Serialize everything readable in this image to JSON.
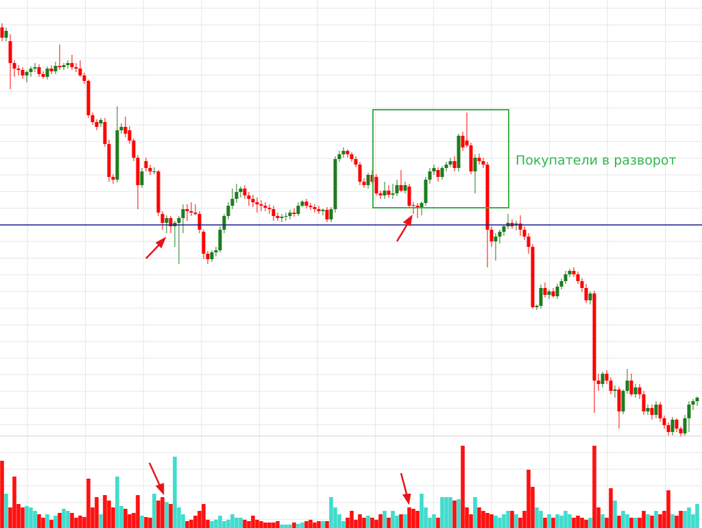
{
  "chart_data": {
    "type": "candlestick",
    "annotation": "Покупатели в разворот",
    "up_color": "#1e7b1e",
    "down_color": "#ff0000",
    "volume_up_color": "#40dccc",
    "volume_down_color": "#ff1010",
    "level": 312,
    "level_color": "#1a1a8c",
    "grid": true,
    "ylim": [
      0,
      640
    ],
    "vlim": [
      0,
      130
    ],
    "candles": [
      [
        600,
        606,
        580,
        585
      ],
      [
        585,
        600,
        580,
        595
      ],
      [
        580,
        590,
        510,
        548
      ],
      [
        548,
        552,
        528,
        540
      ],
      [
        540,
        545,
        530,
        538
      ],
      [
        538,
        542,
        525,
        530
      ],
      [
        530,
        537,
        520,
        535
      ],
      [
        535,
        543,
        528,
        540
      ],
      [
        540,
        548,
        535,
        542
      ],
      [
        542,
        546,
        528,
        532
      ],
      [
        532,
        536,
        525,
        528
      ],
      [
        528,
        543,
        524,
        540
      ],
      [
        540,
        545,
        532,
        536
      ],
      [
        536,
        550,
        532,
        544
      ],
      [
        544,
        575,
        538,
        542
      ],
      [
        542,
        548,
        538,
        545
      ],
      [
        545,
        552,
        540,
        548
      ],
      [
        548,
        560,
        538,
        542
      ],
      [
        542,
        548,
        535,
        540
      ],
      [
        540,
        552,
        528,
        530
      ],
      [
        530,
        534,
        518,
        522
      ],
      [
        522,
        524,
        468,
        472
      ],
      [
        472,
        476,
        458,
        462
      ],
      [
        462,
        466,
        450,
        455
      ],
      [
        460,
        468,
        455,
        465
      ],
      [
        462,
        468,
        426,
        430
      ],
      [
        430,
        436,
        375,
        382
      ],
      [
        382,
        386,
        372,
        378
      ],
      [
        378,
        485,
        374,
        450
      ],
      [
        450,
        460,
        445,
        455
      ],
      [
        455,
        470,
        440,
        445
      ],
      [
        450,
        456,
        430,
        435
      ],
      [
        435,
        438,
        405,
        410
      ],
      [
        410,
        414,
        335,
        370
      ],
      [
        370,
        395,
        366,
        390
      ],
      [
        405,
        410,
        390,
        395
      ],
      [
        395,
        400,
        385,
        390
      ],
      [
        390,
        396,
        386,
        390
      ],
      [
        390,
        392,
        325,
        330
      ],
      [
        328,
        332,
        305,
        315
      ],
      [
        315,
        326,
        300,
        322
      ],
      [
        322,
        325,
        300,
        310
      ],
      [
        310,
        318,
        280,
        315
      ],
      [
        315,
        325,
        255,
        322
      ],
      [
        322,
        342,
        300,
        335
      ],
      [
        335,
        342,
        318,
        332
      ],
      [
        332,
        345,
        325,
        330
      ],
      [
        330,
        342,
        326,
        328
      ],
      [
        328,
        332,
        300,
        305
      ],
      [
        302,
        305,
        262,
        270
      ],
      [
        270,
        274,
        255,
        262
      ],
      [
        262,
        275,
        258,
        272
      ],
      [
        272,
        280,
        266,
        275
      ],
      [
        275,
        310,
        272,
        305
      ],
      [
        305,
        328,
        300,
        325
      ],
      [
        325,
        345,
        320,
        340
      ],
      [
        340,
        365,
        335,
        350
      ],
      [
        350,
        372,
        344,
        360
      ],
      [
        360,
        368,
        352,
        365
      ],
      [
        365,
        370,
        350,
        355
      ],
      [
        355,
        360,
        340,
        350
      ],
      [
        350,
        356,
        338,
        345
      ],
      [
        345,
        352,
        330,
        342
      ],
      [
        342,
        348,
        332,
        340
      ],
      [
        340,
        345,
        332,
        337
      ],
      [
        337,
        342,
        328,
        335
      ],
      [
        335,
        340,
        318,
        325
      ],
      [
        325,
        330,
        318,
        322
      ],
      [
        322,
        328,
        316,
        324
      ],
      [
        324,
        330,
        318,
        325
      ],
      [
        325,
        334,
        320,
        330
      ],
      [
        330,
        336,
        324,
        328
      ],
      [
        328,
        345,
        325,
        340
      ],
      [
        340,
        348,
        338,
        346
      ],
      [
        346,
        350,
        336,
        340
      ],
      [
        340,
        344,
        334,
        338
      ],
      [
        338,
        342,
        330,
        335
      ],
      [
        335,
        340,
        328,
        332
      ],
      [
        332,
        336,
        326,
        334
      ],
      [
        334,
        338,
        316,
        320
      ],
      [
        320,
        338,
        316,
        335
      ],
      [
        335,
        412,
        330,
        408
      ],
      [
        408,
        420,
        404,
        415
      ],
      [
        415,
        425,
        410,
        420
      ],
      [
        420,
        422,
        410,
        415
      ],
      [
        415,
        418,
        404,
        408
      ],
      [
        408,
        412,
        396,
        400
      ],
      [
        400,
        404,
        370,
        375
      ],
      [
        375,
        380,
        366,
        370
      ],
      [
        370,
        388,
        365,
        385
      ],
      [
        385,
        392,
        372,
        375
      ],
      [
        382,
        386,
        355,
        358
      ],
      [
        358,
        362,
        350,
        355
      ],
      [
        355,
        375,
        350,
        362
      ],
      [
        362,
        370,
        352,
        356
      ],
      [
        356,
        372,
        350,
        358
      ],
      [
        358,
        378,
        354,
        370
      ],
      [
        370,
        392,
        360,
        362
      ],
      [
        362,
        375,
        358,
        370
      ],
      [
        368,
        372,
        336,
        340
      ],
      [
        341,
        345,
        328,
        340
      ],
      [
        340,
        344,
        322,
        338
      ],
      [
        338,
        346,
        326,
        344
      ],
      [
        344,
        382,
        340,
        378
      ],
      [
        378,
        395,
        372,
        390
      ],
      [
        390,
        400,
        385,
        395
      ],
      [
        392,
        396,
        375,
        382
      ],
      [
        382,
        398,
        378,
        395
      ],
      [
        395,
        404,
        390,
        400
      ],
      [
        400,
        410,
        396,
        405
      ],
      [
        405,
        412,
        390,
        395
      ],
      [
        395,
        445,
        390,
        442
      ],
      [
        442,
        448,
        420,
        425
      ],
      [
        435,
        476,
        425,
        428
      ],
      [
        428,
        432,
        386,
        390
      ],
      [
        390,
        415,
        358,
        410
      ],
      [
        410,
        416,
        400,
        405
      ],
      [
        405,
        410,
        395,
        400
      ],
      [
        400,
        404,
        250,
        305
      ],
      [
        305,
        310,
        280,
        288
      ],
      [
        288,
        300,
        260,
        295
      ],
      [
        295,
        305,
        285,
        302
      ],
      [
        302,
        312,
        296,
        310
      ],
      [
        310,
        328,
        306,
        315
      ],
      [
        315,
        320,
        306,
        310
      ],
      [
        312,
        318,
        304,
        314
      ],
      [
        314,
        326,
        296,
        305
      ],
      [
        305,
        310,
        290,
        295
      ],
      [
        295,
        300,
        270,
        280
      ],
      [
        280,
        284,
        190,
        192
      ],
      [
        192,
        196,
        188,
        194
      ],
      [
        194,
        225,
        190,
        220
      ],
      [
        220,
        228,
        206,
        210
      ],
      [
        210,
        218,
        204,
        215
      ],
      [
        215,
        220,
        206,
        208
      ],
      [
        208,
        226,
        204,
        222
      ],
      [
        222,
        234,
        218,
        230
      ],
      [
        230,
        245,
        226,
        240
      ],
      [
        240,
        248,
        236,
        245
      ],
      [
        245,
        250,
        236,
        240
      ],
      [
        240,
        244,
        226,
        230
      ],
      [
        230,
        234,
        214,
        220
      ],
      [
        220,
        226,
        198,
        202
      ],
      [
        202,
        215,
        196,
        212
      ],
      [
        212,
        216,
        38,
        85
      ],
      [
        85,
        95,
        70,
        80
      ],
      [
        80,
        98,
        75,
        95
      ],
      [
        95,
        100,
        80,
        85
      ],
      [
        85,
        90,
        65,
        70
      ],
      [
        70,
        78,
        60,
        72
      ],
      [
        72,
        76,
        15,
        40
      ],
      [
        40,
        72,
        36,
        70
      ],
      [
        70,
        102,
        66,
        85
      ],
      [
        85,
        95,
        62,
        65
      ],
      [
        65,
        80,
        60,
        75
      ],
      [
        75,
        80,
        58,
        65
      ],
      [
        65,
        70,
        35,
        40
      ],
      [
        40,
        50,
        35,
        45
      ],
      [
        45,
        50,
        28,
        35
      ],
      [
        35,
        55,
        30,
        50
      ],
      [
        50,
        54,
        25,
        30
      ],
      [
        30,
        34,
        15,
        20
      ],
      [
        20,
        24,
        5,
        10
      ],
      [
        10,
        32,
        5,
        28
      ],
      [
        28,
        30,
        10,
        15
      ],
      [
        15,
        18,
        3,
        8
      ],
      [
        8,
        35,
        4,
        30
      ],
      [
        30,
        55,
        10,
        50
      ],
      [
        50,
        58,
        42,
        55
      ],
      [
        55,
        62,
        48,
        60
      ]
    ],
    "volume": [
      98,
      50,
      30,
      75,
      35,
      30,
      32,
      30,
      25,
      20,
      15,
      20,
      12,
      18,
      22,
      28,
      25,
      22,
      15,
      18,
      16,
      72,
      30,
      45,
      20,
      48,
      40,
      30,
      75,
      32,
      28,
      20,
      22,
      48,
      18,
      16,
      15,
      50,
      40,
      45,
      38,
      35,
      104,
      30,
      20,
      10,
      12,
      18,
      25,
      35,
      12,
      10,
      12,
      18,
      10,
      12,
      20,
      15,
      15,
      12,
      10,
      18,
      12,
      10,
      8,
      8,
      8,
      10,
      5,
      5,
      5,
      8,
      6,
      8,
      10,
      12,
      8,
      10,
      10,
      10,
      45,
      30,
      20,
      10,
      15,
      25,
      12,
      20,
      15,
      18,
      15,
      12,
      20,
      25,
      15,
      25,
      18,
      20,
      20,
      30,
      28,
      25,
      50,
      30,
      15,
      20,
      15,
      45,
      45,
      45,
      40,
      42,
      120,
      30,
      20,
      45,
      30,
      25,
      22,
      20,
      18,
      15,
      20,
      25,
      25,
      20,
      15,
      25,
      85,
      60,
      30,
      25,
      15,
      20,
      15,
      20,
      18,
      25,
      20,
      15,
      18,
      15,
      12,
      15,
      120,
      30,
      20,
      15,
      58,
      40,
      18,
      25,
      20,
      15,
      15,
      15,
      25,
      20,
      18,
      25,
      20,
      25,
      55,
      20,
      18,
      25,
      25,
      30,
      20,
      35
    ]
  }
}
